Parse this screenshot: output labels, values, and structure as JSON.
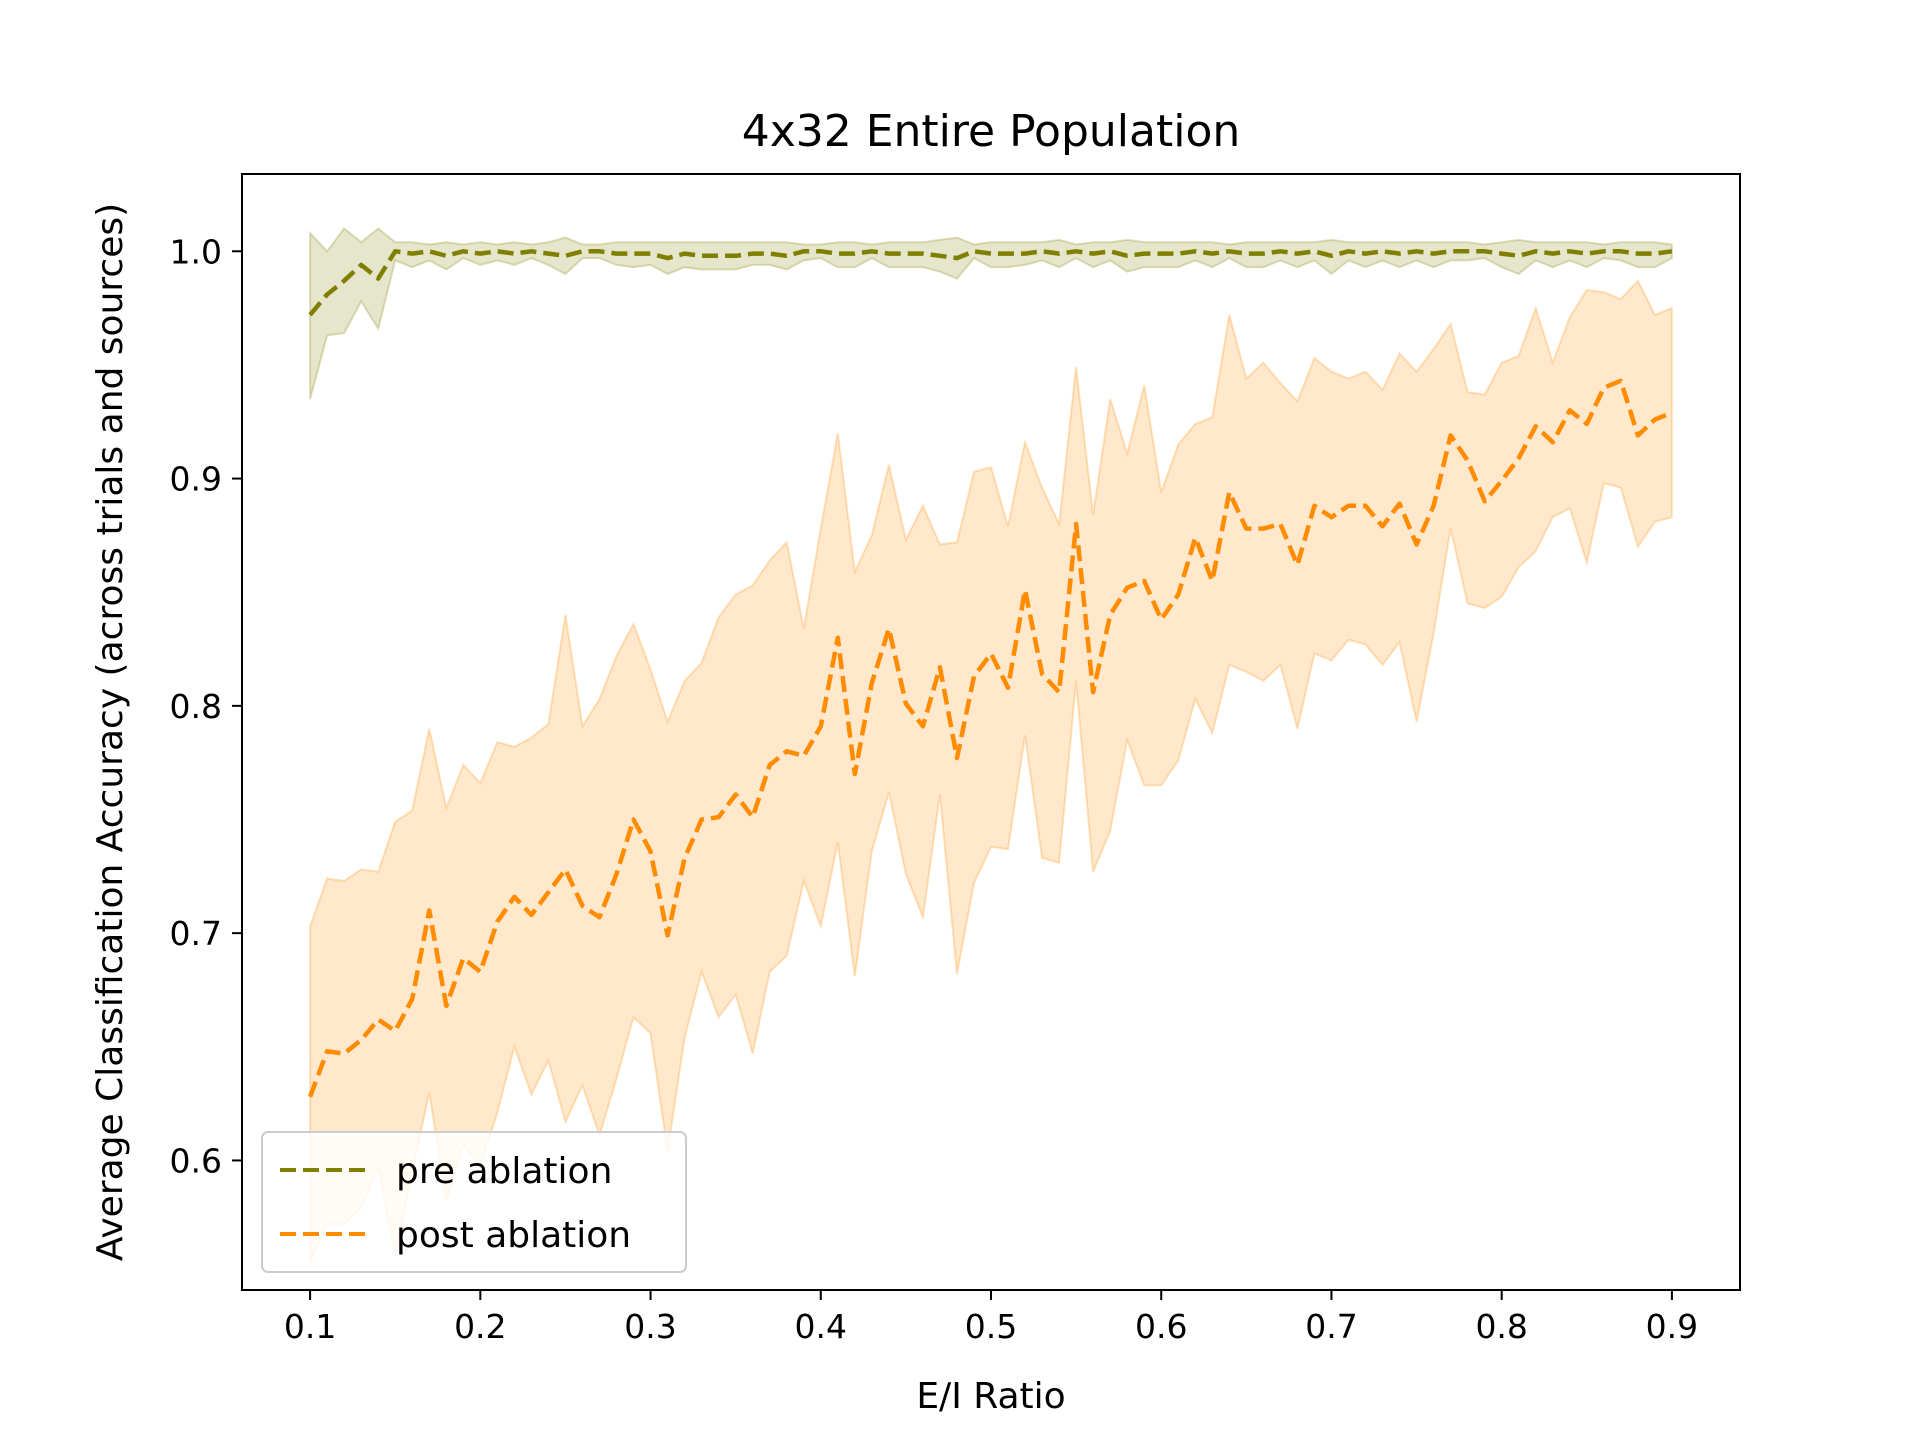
{
  "chart_data": {
    "type": "line",
    "title": "4x32 Entire Population",
    "xlabel": "E/I Ratio",
    "ylabel": "Average Classification Accuracy (across trials and sources)",
    "xlim": [
      0.06,
      0.94
    ],
    "ylim": [
      0.543,
      1.034
    ],
    "xticks": [
      0.1,
      0.2,
      0.3,
      0.4,
      0.5,
      0.6,
      0.7,
      0.8,
      0.9
    ],
    "xtick_labels": [
      "0.1",
      "0.2",
      "0.3",
      "0.4",
      "0.5",
      "0.6",
      "0.7",
      "0.8",
      "0.9"
    ],
    "yticks": [
      0.6,
      0.7,
      0.8,
      0.9,
      1.0
    ],
    "ytick_labels": [
      "0.6",
      "0.7",
      "0.8",
      "0.9",
      "1.0"
    ],
    "grid": false,
    "legend_position": "lower-left",
    "x": [
      0.1,
      0.11,
      0.12,
      0.13,
      0.14,
      0.15,
      0.16,
      0.17,
      0.18,
      0.19,
      0.2,
      0.21,
      0.22,
      0.23,
      0.24,
      0.25,
      0.26,
      0.27,
      0.28,
      0.29,
      0.3,
      0.31,
      0.32,
      0.33,
      0.34,
      0.35,
      0.36,
      0.37,
      0.38,
      0.39,
      0.4,
      0.41,
      0.42,
      0.43,
      0.44,
      0.45,
      0.46,
      0.47,
      0.48,
      0.49,
      0.5,
      0.51,
      0.52,
      0.53,
      0.54,
      0.55,
      0.56,
      0.57,
      0.58,
      0.59,
      0.6,
      0.61,
      0.62,
      0.63,
      0.64,
      0.65,
      0.66,
      0.67,
      0.68,
      0.69,
      0.7,
      0.71,
      0.72,
      0.73,
      0.74,
      0.75,
      0.76,
      0.77,
      0.78,
      0.79,
      0.8,
      0.81,
      0.82,
      0.83,
      0.84,
      0.85,
      0.86,
      0.87,
      0.88,
      0.89,
      0.9
    ],
    "series": [
      {
        "name": "pre ablation",
        "color": "#808000",
        "dash": "dashed",
        "values": [
          0.972,
          0.981,
          0.987,
          0.994,
          0.988,
          1.0,
          0.999,
          1.0,
          0.998,
          1.0,
          0.999,
          1.0,
          0.999,
          1.0,
          0.999,
          0.998,
          1.0,
          1.0,
          0.999,
          0.999,
          0.999,
          0.997,
          0.999,
          0.998,
          0.998,
          0.998,
          0.999,
          0.999,
          0.998,
          1.0,
          1.0,
          0.999,
          0.999,
          1.0,
          0.999,
          0.999,
          0.999,
          0.998,
          0.997,
          1.0,
          0.999,
          0.999,
          0.999,
          1.0,
          0.999,
          1.0,
          0.999,
          1.0,
          0.998,
          0.999,
          0.999,
          0.999,
          1.0,
          0.999,
          1.0,
          0.999,
          0.999,
          1.0,
          0.999,
          1.0,
          0.998,
          1.0,
          0.999,
          1.0,
          0.999,
          1.0,
          0.999,
          1.0,
          1.0,
          1.0,
          0.999,
          0.998,
          1.0,
          0.999,
          1.0,
          0.999,
          1.0,
          1.0,
          0.999,
          0.999,
          1.0
        ],
        "lower": [
          0.935,
          0.963,
          0.964,
          0.978,
          0.966,
          0.996,
          0.993,
          0.996,
          0.992,
          0.997,
          0.994,
          0.996,
          0.994,
          0.997,
          0.994,
          0.99,
          0.997,
          0.997,
          0.994,
          0.993,
          0.994,
          0.99,
          0.993,
          0.992,
          0.992,
          0.992,
          0.994,
          0.994,
          0.992,
          0.996,
          0.997,
          0.993,
          0.993,
          0.997,
          0.993,
          0.993,
          0.993,
          0.991,
          0.988,
          0.997,
          0.993,
          0.993,
          0.994,
          0.996,
          0.993,
          0.997,
          0.993,
          0.996,
          0.991,
          0.993,
          0.993,
          0.993,
          0.996,
          0.993,
          0.997,
          0.993,
          0.993,
          0.996,
          0.993,
          0.996,
          0.99,
          0.996,
          0.993,
          0.996,
          0.993,
          0.996,
          0.993,
          0.996,
          0.996,
          0.997,
          0.993,
          0.99,
          0.996,
          0.993,
          0.996,
          0.993,
          0.997,
          0.996,
          0.993,
          0.993,
          0.997
        ],
        "upper": [
          1.008,
          1.0,
          1.01,
          1.004,
          1.01,
          1.004,
          1.004,
          1.003,
          1.004,
          1.003,
          1.004,
          1.003,
          1.004,
          1.003,
          1.004,
          1.006,
          1.003,
          1.003,
          1.004,
          1.004,
          1.004,
          1.004,
          1.004,
          1.004,
          1.004,
          1.004,
          1.004,
          1.004,
          1.004,
          1.003,
          1.003,
          1.004,
          1.004,
          1.003,
          1.004,
          1.004,
          1.004,
          1.005,
          1.006,
          1.003,
          1.004,
          1.004,
          1.004,
          1.004,
          1.005,
          1.003,
          1.004,
          1.004,
          1.005,
          1.004,
          1.004,
          1.004,
          1.004,
          1.004,
          1.003,
          1.004,
          1.004,
          1.004,
          1.004,
          1.004,
          1.005,
          1.004,
          1.004,
          1.004,
          1.004,
          1.004,
          1.004,
          1.004,
          1.004,
          1.003,
          1.004,
          1.005,
          1.004,
          1.004,
          1.004,
          1.004,
          1.003,
          1.004,
          1.004,
          1.004,
          1.003
        ]
      },
      {
        "name": "post ablation",
        "color": "#ff8c00",
        "dash": "dashed",
        "values": [
          0.628,
          0.648,
          0.647,
          0.653,
          0.662,
          0.657,
          0.671,
          0.71,
          0.668,
          0.689,
          0.683,
          0.705,
          0.716,
          0.708,
          0.718,
          0.728,
          0.712,
          0.707,
          0.726,
          0.75,
          0.736,
          0.699,
          0.733,
          0.75,
          0.751,
          0.761,
          0.751,
          0.774,
          0.78,
          0.778,
          0.791,
          0.83,
          0.77,
          0.81,
          0.834,
          0.801,
          0.791,
          0.817,
          0.777,
          0.813,
          0.823,
          0.808,
          0.851,
          0.814,
          0.806,
          0.88,
          0.806,
          0.84,
          0.852,
          0.855,
          0.838,
          0.849,
          0.874,
          0.855,
          0.894,
          0.878,
          0.878,
          0.88,
          0.862,
          0.888,
          0.883,
          0.888,
          0.888,
          0.879,
          0.889,
          0.871,
          0.888,
          0.919,
          0.908,
          0.89,
          0.899,
          0.909,
          0.923,
          0.916,
          0.93,
          0.924,
          0.94,
          0.943,
          0.919,
          0.926,
          0.929
        ],
        "lower": [
          0.555,
          0.572,
          0.572,
          0.579,
          0.597,
          0.558,
          0.595,
          0.63,
          0.582,
          0.607,
          0.598,
          0.621,
          0.65,
          0.629,
          0.644,
          0.617,
          0.633,
          0.611,
          0.636,
          0.663,
          0.656,
          0.604,
          0.654,
          0.683,
          0.663,
          0.673,
          0.647,
          0.683,
          0.69,
          0.723,
          0.703,
          0.74,
          0.681,
          0.736,
          0.762,
          0.726,
          0.707,
          0.761,
          0.682,
          0.722,
          0.738,
          0.737,
          0.787,
          0.733,
          0.731,
          0.811,
          0.727,
          0.745,
          0.785,
          0.765,
          0.765,
          0.776,
          0.803,
          0.788,
          0.818,
          0.815,
          0.811,
          0.818,
          0.79,
          0.823,
          0.82,
          0.829,
          0.827,
          0.818,
          0.828,
          0.793,
          0.832,
          0.878,
          0.845,
          0.843,
          0.848,
          0.861,
          0.868,
          0.883,
          0.887,
          0.863,
          0.898,
          0.896,
          0.87,
          0.881,
          0.883
        ],
        "upper": [
          0.703,
          0.724,
          0.723,
          0.728,
          0.727,
          0.749,
          0.754,
          0.79,
          0.755,
          0.774,
          0.766,
          0.784,
          0.782,
          0.786,
          0.792,
          0.84,
          0.791,
          0.803,
          0.822,
          0.836,
          0.816,
          0.793,
          0.811,
          0.819,
          0.839,
          0.849,
          0.853,
          0.864,
          0.872,
          0.834,
          0.878,
          0.92,
          0.859,
          0.875,
          0.906,
          0.873,
          0.888,
          0.871,
          0.872,
          0.903,
          0.905,
          0.879,
          0.916,
          0.896,
          0.88,
          0.949,
          0.884,
          0.935,
          0.911,
          0.941,
          0.894,
          0.915,
          0.924,
          0.927,
          0.972,
          0.944,
          0.951,
          0.942,
          0.934,
          0.953,
          0.947,
          0.944,
          0.947,
          0.939,
          0.955,
          0.947,
          0.957,
          0.968,
          0.938,
          0.937,
          0.951,
          0.954,
          0.975,
          0.951,
          0.971,
          0.983,
          0.982,
          0.979,
          0.987,
          0.972,
          0.975
        ]
      }
    ]
  }
}
